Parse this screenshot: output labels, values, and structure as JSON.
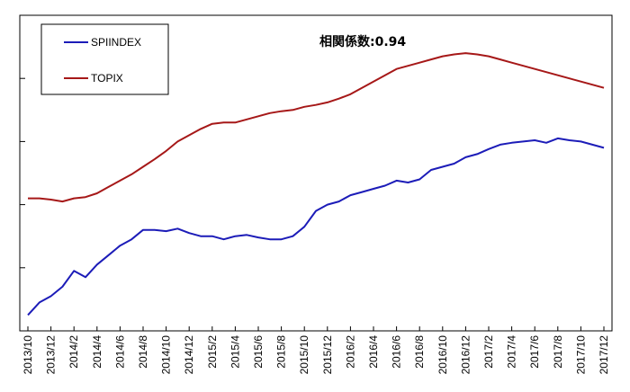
{
  "chart_data": {
    "type": "line",
    "title": "",
    "xlabel": "",
    "ylabel": "",
    "annotation": "相関係数:0.94",
    "categories": [
      "2013/10",
      "2013/12",
      "2014/2",
      "2014/4",
      "2014/6",
      "2014/8",
      "2014/10",
      "2014/12",
      "2015/2",
      "2015/4",
      "2015/6",
      "2015/8",
      "2015/10",
      "2015/12",
      "2016/2",
      "2016/4",
      "2016/6",
      "2016/8",
      "2016/10",
      "2016/12",
      "2017/2",
      "2017/4",
      "2017/6",
      "2017/8",
      "2017/10",
      "2017/12"
    ],
    "x": [
      0,
      0.5,
      1,
      1.5,
      2,
      2.5,
      3,
      3.5,
      4,
      4.5,
      5,
      5.5,
      6,
      6.5,
      7,
      7.5,
      8,
      8.5,
      9,
      9.5,
      10,
      10.5,
      11,
      11.5,
      12,
      12.5,
      13,
      13.5,
      14,
      14.5,
      15,
      15.5,
      16,
      16.5,
      17,
      17.5,
      18,
      18.5,
      19,
      19.5,
      20,
      20.5,
      21,
      21.5,
      22,
      22.5,
      23,
      23.5,
      24,
      24.5,
      25
    ],
    "ylim": [
      0,
      5
    ],
    "grid": false,
    "legend_position": "top-left",
    "series": [
      {
        "name": "SPIINDEX",
        "color": "#1c1cb8",
        "values": [
          0.25,
          0.45,
          0.55,
          0.7,
          0.95,
          0.85,
          1.05,
          1.2,
          1.35,
          1.45,
          1.6,
          1.6,
          1.58,
          1.62,
          1.55,
          1.5,
          1.5,
          1.45,
          1.5,
          1.52,
          1.48,
          1.45,
          1.45,
          1.5,
          1.65,
          1.9,
          2.0,
          2.05,
          2.15,
          2.2,
          2.25,
          2.3,
          2.38,
          2.35,
          2.4,
          2.55,
          2.6,
          2.65,
          2.75,
          2.8,
          2.88,
          2.95,
          2.98,
          3.0,
          3.02,
          2.98,
          3.05,
          3.02,
          3.0,
          2.95,
          2.9
        ]
      },
      {
        "name": "TOPIX",
        "color": "#a61818",
        "values": [
          2.1,
          2.1,
          2.08,
          2.05,
          2.1,
          2.12,
          2.18,
          2.28,
          2.38,
          2.48,
          2.6,
          2.72,
          2.85,
          3.0,
          3.1,
          3.2,
          3.28,
          3.3,
          3.3,
          3.35,
          3.4,
          3.45,
          3.48,
          3.5,
          3.55,
          3.58,
          3.62,
          3.68,
          3.75,
          3.85,
          3.95,
          4.05,
          4.15,
          4.2,
          4.25,
          4.3,
          4.35,
          4.38,
          4.4,
          4.38,
          4.35,
          4.3,
          4.25,
          4.2,
          4.15,
          4.1,
          4.05,
          4.0,
          3.95,
          3.9,
          3.85
        ]
      }
    ]
  }
}
